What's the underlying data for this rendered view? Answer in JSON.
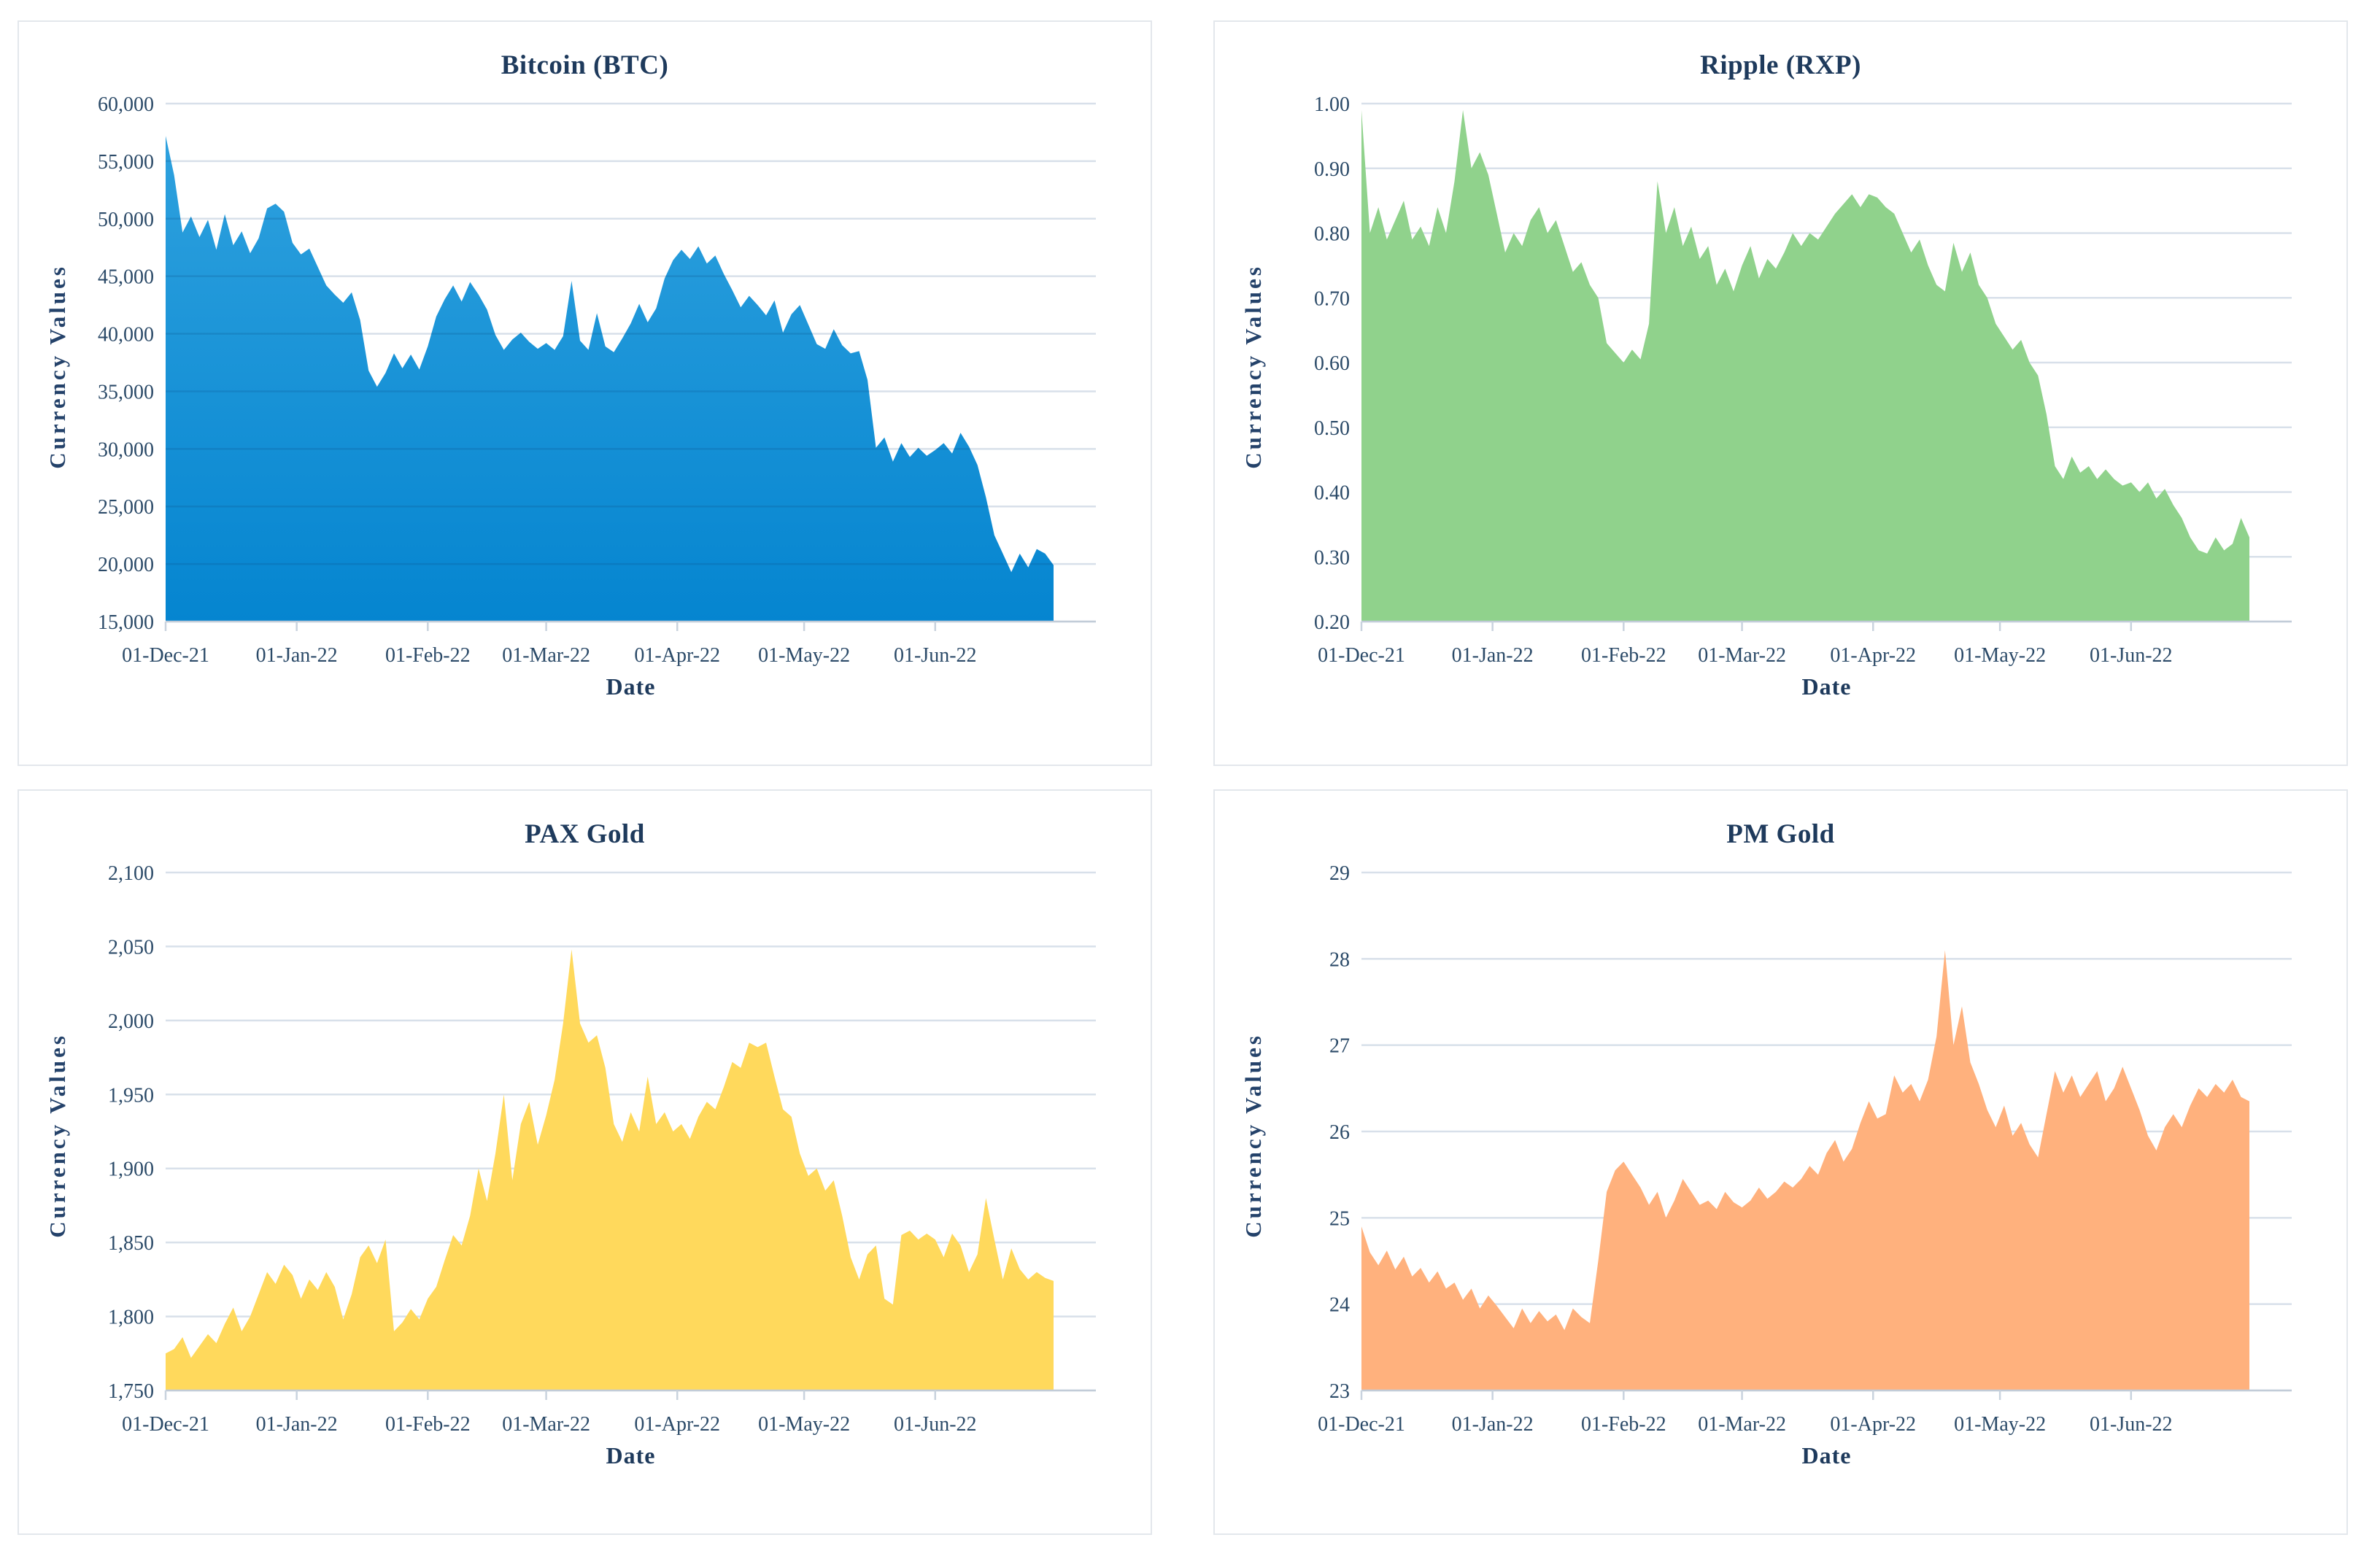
{
  "style": {
    "background": "#ffffff",
    "panel_border": "#e3e7ec",
    "grid_color": "#d8e0ea",
    "grid_over_fill_color": "rgba(8,75,130,0.20)",
    "axis_color": "#c2ccd8",
    "tick_mark_color": "#c9d3de",
    "tick_text_color": "#2b4a68",
    "title_color": "#1e3a5c"
  },
  "chart_shared": {
    "x_span_days": 220,
    "step_days": 2,
    "xticks": [
      {
        "day": 0,
        "label": "01-Dec-21"
      },
      {
        "day": 31,
        "label": "01-Jan-22"
      },
      {
        "day": 62,
        "label": "01-Feb-22"
      },
      {
        "day": 90,
        "label": "01-Mar-22"
      },
      {
        "day": 121,
        "label": "01-Apr-22"
      },
      {
        "day": 151,
        "label": "01-May-22"
      },
      {
        "day": 182,
        "label": "01-Jun-22"
      }
    ]
  },
  "chart_data": [
    {
      "type": "area",
      "title": "Bitcoin (BTC)",
      "xlabel": "Date",
      "ylabel": "Currency Values",
      "legend": "none",
      "grid": true,
      "grid_over_fill": true,
      "ylim": [
        15000,
        60000
      ],
      "fill": {
        "kind": "gradient",
        "from": "#2ea1de",
        "to": "#0585d0"
      },
      "yticks": [
        {
          "value": 60000,
          "label": "60,000"
        },
        {
          "value": 55000,
          "label": "55,000"
        },
        {
          "value": 50000,
          "label": "50,000"
        },
        {
          "value": 45000,
          "label": "45,000"
        },
        {
          "value": 40000,
          "label": "40,000"
        },
        {
          "value": 35000,
          "label": "35,000"
        },
        {
          "value": 30000,
          "label": "30,000"
        },
        {
          "value": 25000,
          "label": "25,000"
        },
        {
          "value": 20000,
          "label": "20,000"
        },
        {
          "value": 15000,
          "label": "15,000"
        }
      ],
      "values": [
        57200,
        53800,
        48800,
        50200,
        48400,
        49900,
        47300,
        50400,
        47700,
        48900,
        47000,
        48300,
        50900,
        51300,
        50600,
        47900,
        46900,
        47400,
        45800,
        44200,
        43400,
        42700,
        43600,
        41200,
        36800,
        35400,
        36600,
        38300,
        37000,
        38200,
        36900,
        38900,
        41500,
        43000,
        44200,
        42800,
        44500,
        43400,
        42100,
        39900,
        38600,
        39500,
        40100,
        39300,
        38700,
        39200,
        38600,
        39800,
        44600,
        39400,
        38600,
        41800,
        38900,
        38400,
        39600,
        40900,
        42600,
        41000,
        42200,
        44800,
        46400,
        47300,
        46500,
        47600,
        46100,
        46800,
        45200,
        43800,
        42300,
        43300,
        42500,
        41600,
        42900,
        40100,
        41700,
        42500,
        40800,
        39100,
        38700,
        40400,
        39000,
        38300,
        38500,
        36000,
        30100,
        31000,
        28900,
        30500,
        29300,
        30100,
        29400,
        29900,
        30500,
        29600,
        31400,
        30200,
        28600,
        25800,
        22500,
        20900,
        19300,
        20900,
        19700,
        21300,
        20900,
        19900
      ]
    },
    {
      "type": "area",
      "title": "Ripple (RXP)",
      "xlabel": "Date",
      "ylabel": "Currency Values",
      "legend": "none",
      "grid": true,
      "grid_over_fill": false,
      "ylim": [
        0.2,
        1.0
      ],
      "fill": {
        "kind": "solid",
        "color": "#90d28c"
      },
      "yticks": [
        {
          "value": 1.0,
          "label": "1.00"
        },
        {
          "value": 0.9,
          "label": "0.90"
        },
        {
          "value": 0.8,
          "label": "0.80"
        },
        {
          "value": 0.7,
          "label": "0.70"
        },
        {
          "value": 0.6,
          "label": "0.60"
        },
        {
          "value": 0.5,
          "label": "0.50"
        },
        {
          "value": 0.4,
          "label": "0.40"
        },
        {
          "value": 0.3,
          "label": "0.30"
        },
        {
          "value": 0.2,
          "label": "0.20"
        }
      ],
      "values": [
        0.99,
        0.8,
        0.84,
        0.79,
        0.82,
        0.85,
        0.79,
        0.81,
        0.78,
        0.84,
        0.8,
        0.88,
        0.99,
        0.9,
        0.925,
        0.89,
        0.83,
        0.77,
        0.8,
        0.78,
        0.82,
        0.84,
        0.8,
        0.82,
        0.78,
        0.74,
        0.755,
        0.72,
        0.7,
        0.63,
        0.615,
        0.6,
        0.62,
        0.605,
        0.66,
        0.88,
        0.8,
        0.84,
        0.78,
        0.81,
        0.76,
        0.78,
        0.72,
        0.745,
        0.71,
        0.75,
        0.78,
        0.73,
        0.76,
        0.745,
        0.77,
        0.8,
        0.78,
        0.8,
        0.79,
        0.81,
        0.83,
        0.845,
        0.86,
        0.84,
        0.86,
        0.855,
        0.84,
        0.83,
        0.8,
        0.77,
        0.79,
        0.75,
        0.72,
        0.71,
        0.785,
        0.74,
        0.77,
        0.72,
        0.7,
        0.66,
        0.64,
        0.62,
        0.635,
        0.6,
        0.58,
        0.52,
        0.44,
        0.42,
        0.455,
        0.43,
        0.44,
        0.42,
        0.435,
        0.42,
        0.41,
        0.415,
        0.4,
        0.415,
        0.39,
        0.405,
        0.38,
        0.36,
        0.33,
        0.31,
        0.305,
        0.33,
        0.31,
        0.32,
        0.36,
        0.33
      ]
    },
    {
      "type": "area",
      "title": "PAX Gold",
      "xlabel": "Date",
      "ylabel": "Currency Values",
      "legend": "none",
      "grid": true,
      "grid_over_fill": false,
      "ylim": [
        1750,
        2100
      ],
      "fill": {
        "kind": "solid",
        "color": "#ffd95c"
      },
      "yticks": [
        {
          "value": 2100,
          "label": "2,100"
        },
        {
          "value": 2050,
          "label": "2,050"
        },
        {
          "value": 2000,
          "label": "2,000"
        },
        {
          "value": 1950,
          "label": "1,950"
        },
        {
          "value": 1900,
          "label": "1,900"
        },
        {
          "value": 1850,
          "label": "1,850"
        },
        {
          "value": 1800,
          "label": "1,800"
        },
        {
          "value": 1750,
          "label": "1,750"
        }
      ],
      "values": [
        1775,
        1778,
        1786,
        1772,
        1780,
        1788,
        1782,
        1795,
        1806,
        1790,
        1800,
        1815,
        1830,
        1822,
        1835,
        1828,
        1812,
        1825,
        1818,
        1830,
        1820,
        1798,
        1815,
        1840,
        1848,
        1836,
        1852,
        1790,
        1796,
        1805,
        1798,
        1812,
        1820,
        1838,
        1855,
        1848,
        1868,
        1900,
        1878,
        1910,
        1950,
        1892,
        1930,
        1945,
        1916,
        1936,
        1960,
        1998,
        2048,
        1998,
        1985,
        1990,
        1968,
        1930,
        1918,
        1938,
        1925,
        1962,
        1930,
        1938,
        1925,
        1930,
        1920,
        1935,
        1945,
        1940,
        1955,
        1972,
        1968,
        1985,
        1982,
        1985,
        1962,
        1940,
        1935,
        1910,
        1895,
        1900,
        1885,
        1892,
        1868,
        1840,
        1825,
        1842,
        1848,
        1812,
        1808,
        1855,
        1858,
        1852,
        1856,
        1852,
        1840,
        1856,
        1848,
        1830,
        1842,
        1880,
        1852,
        1825,
        1846,
        1832,
        1825,
        1830,
        1826,
        1824
      ]
    },
    {
      "type": "area",
      "title": "PM Gold",
      "xlabel": "Date",
      "ylabel": "Currency Values",
      "legend": "none",
      "grid": true,
      "grid_over_fill": false,
      "ylim": [
        23,
        29
      ],
      "fill": {
        "kind": "solid",
        "color": "#ffb17d"
      },
      "yticks": [
        {
          "value": 29,
          "label": "29"
        },
        {
          "value": 28,
          "label": "28"
        },
        {
          "value": 27,
          "label": "27"
        },
        {
          "value": 26,
          "label": "26"
        },
        {
          "value": 25,
          "label": "25"
        },
        {
          "value": 24,
          "label": "24"
        },
        {
          "value": 23,
          "label": "23"
        }
      ],
      "values": [
        24.9,
        24.6,
        24.45,
        24.62,
        24.4,
        24.55,
        24.32,
        24.42,
        24.25,
        24.38,
        24.18,
        24.25,
        24.05,
        24.18,
        23.95,
        24.1,
        23.98,
        23.85,
        23.72,
        23.95,
        23.78,
        23.92,
        23.8,
        23.88,
        23.7,
        23.95,
        23.85,
        23.78,
        24.5,
        25.3,
        25.55,
        25.65,
        25.5,
        25.35,
        25.15,
        25.3,
        25.0,
        25.2,
        25.45,
        25.3,
        25.15,
        25.2,
        25.1,
        25.3,
        25.18,
        25.12,
        25.2,
        25.35,
        25.22,
        25.3,
        25.42,
        25.35,
        25.45,
        25.6,
        25.5,
        25.75,
        25.9,
        25.65,
        25.8,
        26.1,
        26.35,
        26.15,
        26.2,
        26.65,
        26.45,
        26.55,
        26.35,
        26.6,
        27.1,
        28.1,
        27.0,
        27.45,
        26.8,
        26.55,
        26.25,
        26.05,
        26.3,
        25.95,
        26.1,
        25.85,
        25.7,
        26.2,
        26.7,
        26.45,
        26.65,
        26.4,
        26.55,
        26.7,
        26.35,
        26.5,
        26.75,
        26.5,
        26.25,
        25.95,
        25.78,
        26.05,
        26.2,
        26.05,
        26.3,
        26.5,
        26.4,
        26.55,
        26.45,
        26.6,
        26.4,
        26.35
      ]
    }
  ]
}
